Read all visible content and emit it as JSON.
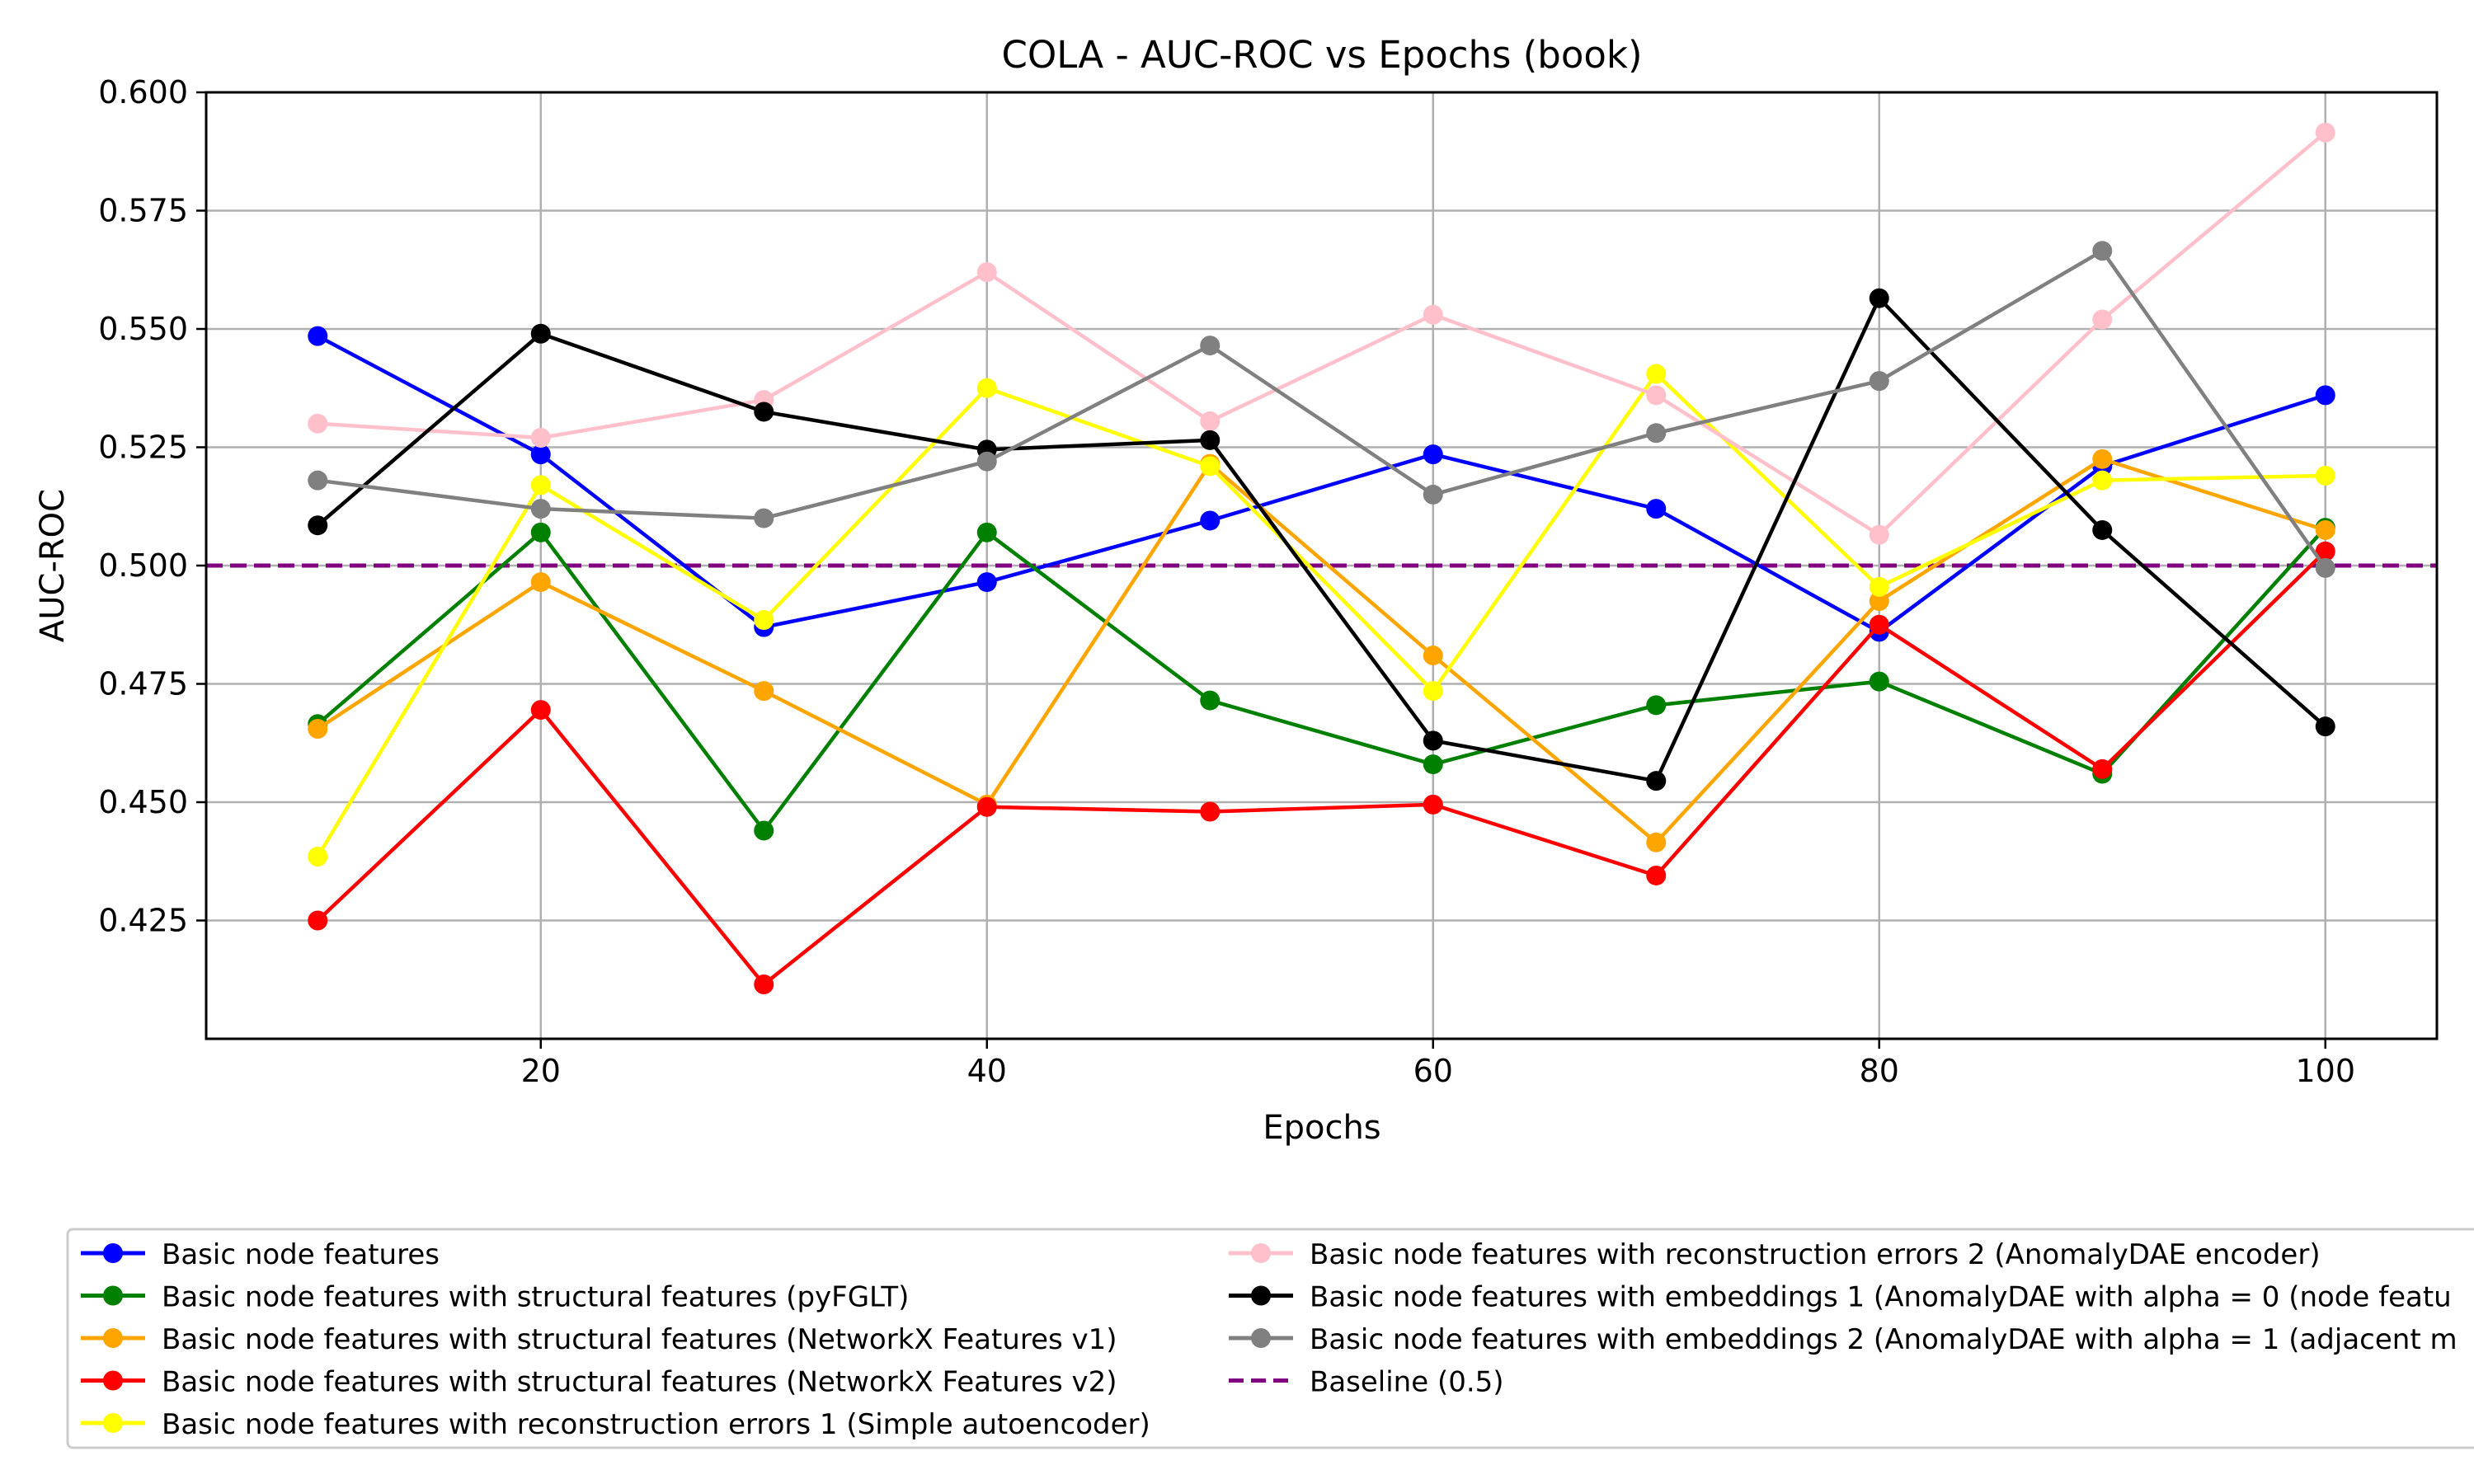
{
  "chart_data": {
    "type": "line",
    "title": "COLA - AUC-ROC vs Epochs (book)",
    "xlabel": "Epochs",
    "ylabel": "AUC-ROC",
    "xlim": [
      5,
      105
    ],
    "ylim": [
      0.4,
      0.6
    ],
    "xticks": [
      20,
      40,
      60,
      80,
      100
    ],
    "yticks": [
      0.425,
      0.45,
      0.475,
      0.5,
      0.525,
      0.55,
      0.575,
      0.6
    ],
    "ytick_labels": [
      "0.425",
      "0.450",
      "0.475",
      "0.500",
      "0.525",
      "0.550",
      "0.575",
      "0.600"
    ],
    "grid": true,
    "legend_position": "below",
    "x": [
      10,
      20,
      30,
      40,
      50,
      60,
      70,
      80,
      90,
      100
    ],
    "series": [
      {
        "name": "Basic node features",
        "color": "#0000ff",
        "values": [
          0.5485,
          0.5235,
          0.487,
          0.4965,
          0.5095,
          0.5235,
          0.512,
          0.486,
          0.521,
          0.536
        ]
      },
      {
        "name": "Basic node features with structural features (pyFGLT)",
        "color": "#008000",
        "values": [
          0.4665,
          0.507,
          0.444,
          0.507,
          0.4715,
          0.458,
          0.4705,
          0.4755,
          0.456,
          0.508
        ]
      },
      {
        "name": "Basic node features with structural features (NetworkX Features v1)",
        "color": "#ffa500",
        "values": [
          0.4655,
          0.4965,
          0.4735,
          0.4495,
          0.5215,
          0.481,
          0.4415,
          0.4925,
          0.5225,
          0.5075
        ]
      },
      {
        "name": "Basic node features with structural features (NetworkX Features v2)",
        "color": "#ff0000",
        "values": [
          0.425,
          0.4695,
          0.4115,
          0.449,
          0.448,
          0.4495,
          0.4345,
          0.4875,
          0.457,
          0.503
        ]
      },
      {
        "name": "Basic node features with reconstruction errors 1 (Simple autoencoder)",
        "color": "#ffff00",
        "values": [
          0.4385,
          0.517,
          0.4885,
          0.5375,
          0.521,
          0.4735,
          0.5405,
          0.4955,
          0.518,
          0.519
        ]
      },
      {
        "name": "Basic node features with reconstruction errors 2 (AnomalyDAE encoder)",
        "color": "#ffc0cb",
        "values": [
          0.53,
          0.527,
          0.535,
          0.562,
          0.5305,
          0.553,
          0.536,
          0.5065,
          0.552,
          0.5915
        ]
      },
      {
        "name": "Basic node features with embeddings 1 (AnomalyDAE with alpha = 0 (node featu",
        "color": "#000000",
        "values": [
          0.5085,
          0.549,
          0.5325,
          0.5245,
          0.5265,
          0.463,
          0.4545,
          0.5565,
          0.5075,
          0.466
        ]
      },
      {
        "name": "Basic node features with embeddings 2 (AnomalyDAE with alpha = 1 (adjacent m",
        "color": "#808080",
        "values": [
          0.518,
          0.512,
          0.51,
          0.522,
          0.5465,
          0.515,
          0.528,
          0.539,
          0.5665,
          0.4995
        ]
      }
    ],
    "baseline": {
      "name": "Baseline (0.5)",
      "value": 0.5,
      "color": "#800080",
      "style": "dashed"
    }
  }
}
